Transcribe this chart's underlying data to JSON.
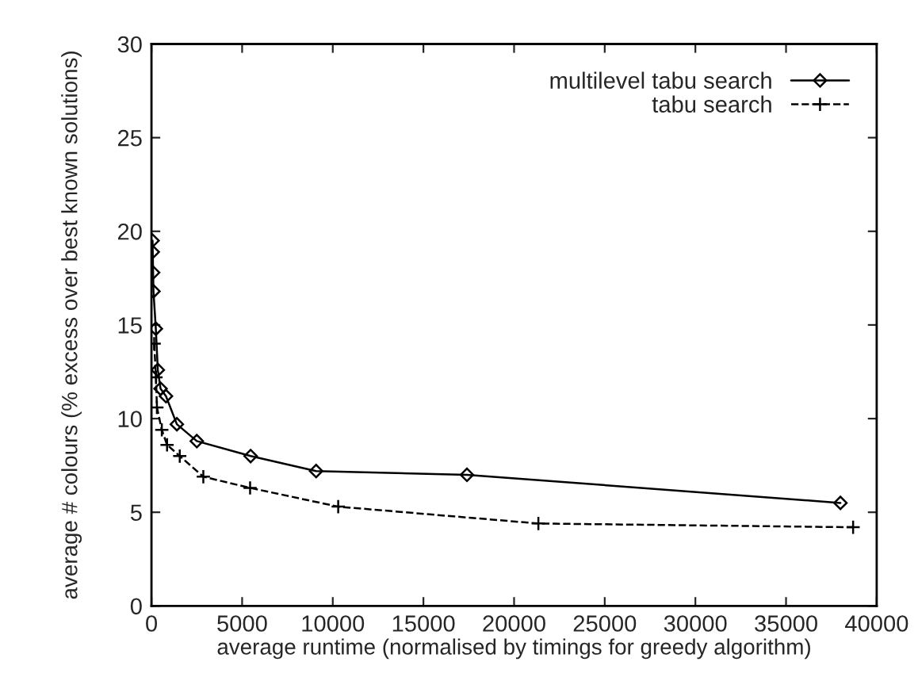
{
  "chart_data": {
    "type": "line",
    "xlabel": "average runtime (normalised by timings for greedy algorithm)",
    "ylabel": "average # colours (% excess over best known solutions)",
    "xlim": [
      0,
      40000
    ],
    "ylim": [
      0,
      30
    ],
    "xticks": [
      0,
      5000,
      10000,
      15000,
      20000,
      25000,
      30000,
      35000,
      40000
    ],
    "yticks": [
      0,
      5,
      10,
      15,
      20,
      25,
      30
    ],
    "grid": false,
    "legend": "top right",
    "series": [
      {
        "name": "multilevel tabu search",
        "color": "#000000",
        "marker": "diamond",
        "line_style": "solid",
        "x": [
          60,
          70,
          90,
          110,
          240,
          350,
          500,
          800,
          1400,
          2500,
          5470,
          9080,
          17400,
          38000
        ],
        "values": [
          19.5,
          18.9,
          17.8,
          16.8,
          14.8,
          12.6,
          11.6,
          11.2,
          9.7,
          8.8,
          8.0,
          7.2,
          7.0,
          5.5
        ]
      },
      {
        "name": "tabu search",
        "color": "#000000",
        "marker": "cross",
        "line_style": "dashed",
        "x": [
          150,
          250,
          300,
          570,
          860,
          1560,
          2860,
          5440,
          10300,
          21340,
          38700
        ],
        "values": [
          14.0,
          12.2,
          10.6,
          9.4,
          8.6,
          8.0,
          6.9,
          6.3,
          5.3,
          4.4,
          4.2
        ]
      }
    ]
  }
}
